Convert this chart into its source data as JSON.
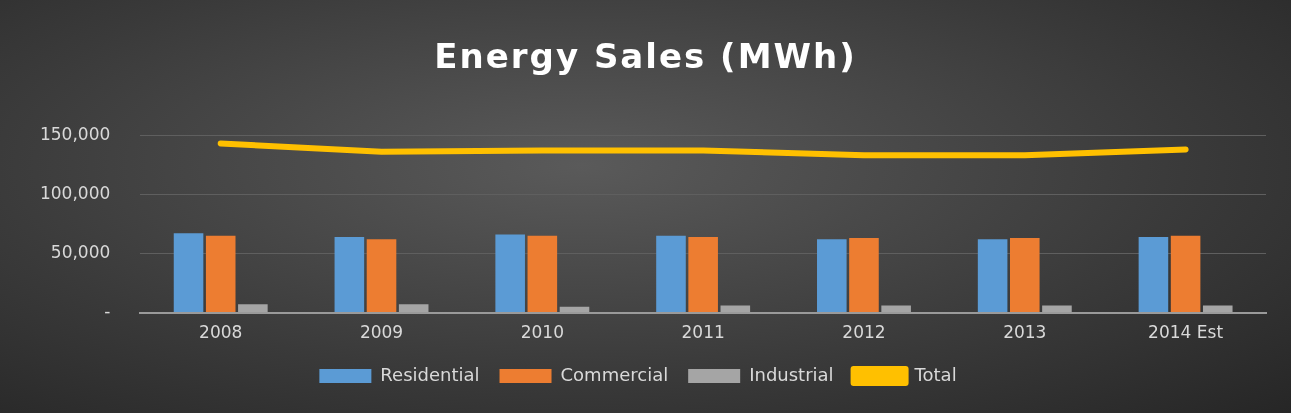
{
  "chart_data": {
    "type": "bar",
    "title": "Energy Sales (MWh)",
    "categories": [
      "2008",
      "2009",
      "2010",
      "2011",
      "2012",
      "2013",
      "2014 Est"
    ],
    "series": [
      {
        "name": "Residential",
        "color": "#5b9bd5",
        "values": [
          67000,
          64000,
          66000,
          65000,
          62000,
          62000,
          64000
        ]
      },
      {
        "name": "Commercial",
        "color": "#ed7d31",
        "values": [
          65000,
          62000,
          65000,
          64000,
          63000,
          63000,
          65000
        ]
      },
      {
        "name": "Industrial",
        "color": "#a5a5a5",
        "values": [
          7000,
          7000,
          5000,
          6000,
          6000,
          6000,
          6000
        ]
      },
      {
        "name": "Total",
        "type": "line",
        "color": "#ffc000",
        "values": [
          143000,
          136000,
          137000,
          137000,
          133000,
          133000,
          138000
        ]
      }
    ],
    "ylim": [
      0,
      150000
    ],
    "yticks": [
      {
        "value": 0,
        "label": "-"
      },
      {
        "value": 50000,
        "label": "50,000"
      },
      {
        "value": 100000,
        "label": "100,000"
      },
      {
        "value": 150000,
        "label": "150,000"
      }
    ],
    "grid": "y",
    "legend": "bottom",
    "marker": "none",
    "line_style": "solid"
  }
}
